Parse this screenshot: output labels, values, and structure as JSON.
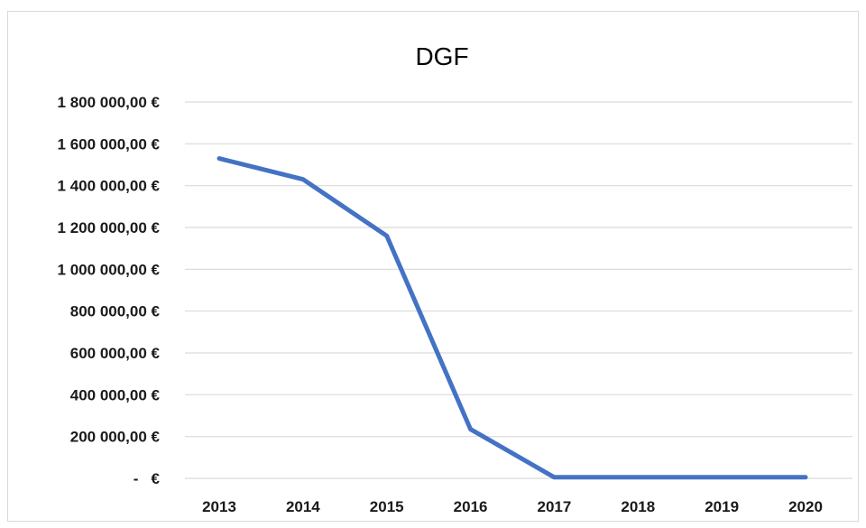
{
  "chart_data": {
    "type": "line",
    "title": "DGF",
    "xlabel": "",
    "ylabel": "",
    "categories": [
      "2013",
      "2014",
      "2015",
      "2016",
      "2017",
      "2018",
      "2019",
      "2020"
    ],
    "series": [
      {
        "values": [
          1530000,
          1430000,
          1160000,
          235000,
          5000,
          5000,
          5000,
          5000
        ]
      }
    ],
    "ylim": [
      0,
      1800000
    ],
    "yticks": [
      {
        "value": 0,
        "label": "-   €"
      },
      {
        "value": 200000,
        "label": "200 000,00 €"
      },
      {
        "value": 400000,
        "label": "400 000,00 €"
      },
      {
        "value": 600000,
        "label": "600 000,00 €"
      },
      {
        "value": 800000,
        "label": "800 000,00 €"
      },
      {
        "value": 1000000,
        "label": "1 000 000,00 €"
      },
      {
        "value": 1200000,
        "label": "1 200 000,00 €"
      },
      {
        "value": 1400000,
        "label": "1 400 000,00 €"
      },
      {
        "value": 1600000,
        "label": "1 600 000,00 €"
      },
      {
        "value": 1800000,
        "label": "1 800 000,00 €"
      }
    ],
    "grid": true,
    "legend": "none",
    "colors": {
      "line": "#4472c4",
      "grid": "#d9d9d9"
    }
  }
}
